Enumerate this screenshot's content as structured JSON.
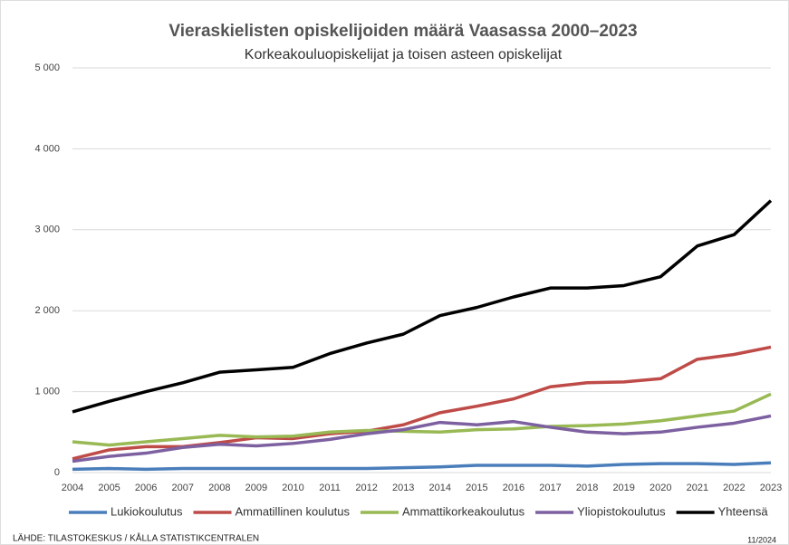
{
  "chart_data": {
    "type": "line",
    "title": "Vieraskielisten opiskelijoiden määrä Vaasassa 2000–2023",
    "subtitle": "Korkeakouluopiskelijat ja toisen asteen opiskelijat",
    "categories": [
      "2004",
      "2005",
      "2006",
      "2007",
      "2008",
      "2009",
      "2010",
      "2011",
      "2012",
      "2013",
      "2014",
      "2015",
      "2016",
      "2017",
      "2018",
      "2019",
      "2020",
      "2021",
      "2022",
      "2023"
    ],
    "series": [
      {
        "name": "Lukiokoulutus",
        "color": "#4a7ebb",
        "values": [
          40,
          50,
          40,
          50,
          50,
          50,
          50,
          50,
          50,
          60,
          70,
          90,
          90,
          90,
          80,
          100,
          110,
          110,
          100,
          120
        ]
      },
      {
        "name": "Ammatillinen koulutus",
        "color": "#be4b48",
        "values": [
          170,
          280,
          320,
          320,
          370,
          430,
          420,
          480,
          510,
          590,
          740,
          820,
          910,
          1060,
          1110,
          1120,
          1160,
          1400,
          1460,
          1550
        ]
      },
      {
        "name": "Ammattikorkeakoulutus",
        "color": "#98b954",
        "values": [
          380,
          340,
          380,
          420,
          460,
          440,
          450,
          500,
          520,
          510,
          500,
          530,
          540,
          570,
          580,
          600,
          640,
          700,
          760,
          970
        ]
      },
      {
        "name": "Yliopistokoulutus",
        "color": "#7d60a0",
        "values": [
          140,
          200,
          240,
          310,
          350,
          330,
          360,
          410,
          480,
          530,
          620,
          590,
          630,
          560,
          500,
          480,
          500,
          560,
          610,
          700
        ]
      },
      {
        "name": "Yhteensä",
        "color": "#000000",
        "values": [
          750,
          880,
          1000,
          1110,
          1240,
          1270,
          1300,
          1470,
          1600,
          1710,
          1940,
          2040,
          2170,
          2280,
          2280,
          2310,
          2420,
          2800,
          2940,
          3360
        ]
      }
    ],
    "ylim": [
      0,
      5000
    ],
    "yticks": [
      0,
      {
        "value": 1000,
        "label": "1 000"
      },
      {
        "value": 2000,
        "label": "2 000"
      },
      {
        "value": 3000,
        "label": "3 000"
      },
      {
        "value": 4000,
        "label": "4 000"
      },
      {
        "value": 5000,
        "label": "5 000"
      }
    ],
    "grid": true,
    "legend": "bottom",
    "source": "LÄHDE: TILASTOKESKUS / KÅLLA STATISTIKCENTRALEN",
    "date": "11/2024"
  }
}
